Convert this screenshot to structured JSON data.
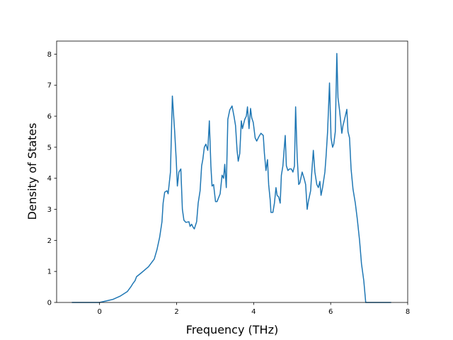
{
  "chart_data": {
    "type": "line",
    "xlabel": "Frequency (THz)",
    "ylabel": "Density of States",
    "x": [
      -0.72,
      0,
      0.35,
      0.53,
      0.72,
      0.81,
      0.86,
      0.92,
      0.96,
      1.08,
      1.27,
      1.42,
      1.49,
      1.56,
      1.62,
      1.65,
      1.69,
      1.75,
      1.78,
      1.84,
      1.89,
      1.95,
      1.99,
      2.02,
      2.06,
      2.11,
      2.15,
      2.19,
      2.24,
      2.32,
      2.35,
      2.39,
      2.43,
      2.46,
      2.52,
      2.56,
      2.61,
      2.65,
      2.68,
      2.72,
      2.76,
      2.81,
      2.85,
      2.89,
      2.92,
      2.96,
      3.01,
      3.05,
      3.13,
      3.18,
      3.22,
      3.25,
      3.29,
      3.33,
      3.38,
      3.44,
      3.49,
      3.53,
      3.57,
      3.6,
      3.64,
      3.68,
      3.71,
      3.77,
      3.81,
      3.84,
      3.88,
      3.92,
      3.95,
      3.99,
      4.04,
      4.08,
      4.14,
      4.19,
      4.25,
      4.28,
      4.32,
      4.36,
      4.39,
      4.43,
      4.45,
      4.5,
      4.54,
      4.58,
      4.61,
      4.65,
      4.69,
      4.72,
      4.76,
      4.82,
      4.85,
      4.89,
      4.93,
      4.98,
      5.02,
      5.06,
      5.09,
      5.13,
      5.17,
      5.2,
      5.26,
      5.31,
      5.35,
      5.39,
      5.42,
      5.48,
      5.51,
      5.55,
      5.59,
      5.64,
      5.68,
      5.72,
      5.75,
      5.79,
      5.85,
      5.88,
      5.92,
      5.97,
      6.01,
      6.05,
      6.08,
      6.12,
      6.16,
      6.19,
      6.23,
      6.29,
      6.32,
      6.36,
      6.42,
      6.45,
      6.49,
      6.53,
      6.58,
      6.64,
      6.69,
      6.75,
      6.8,
      6.86,
      6.91,
      7.57
    ],
    "series": [
      {
        "name": "DOS",
        "color": "#1f77b4",
        "values": [
          0,
          0,
          0.1,
          0.2,
          0.35,
          0.5,
          0.6,
          0.7,
          0.83,
          0.95,
          1.15,
          1.4,
          1.7,
          2.1,
          2.6,
          3.2,
          3.55,
          3.6,
          3.5,
          4.2,
          6.65,
          5.5,
          4.6,
          3.75,
          4.2,
          4.3,
          3.0,
          2.65,
          2.58,
          2.6,
          2.45,
          2.52,
          2.42,
          2.37,
          2.6,
          3.2,
          3.6,
          4.4,
          4.6,
          5.0,
          5.1,
          4.9,
          5.85,
          4.4,
          3.75,
          3.8,
          3.25,
          3.25,
          3.5,
          4.1,
          4.0,
          4.45,
          3.7,
          5.9,
          6.2,
          6.33,
          6.0,
          5.7,
          4.9,
          4.55,
          4.8,
          5.85,
          5.6,
          5.9,
          6.0,
          6.3,
          5.6,
          6.25,
          5.95,
          5.8,
          5.3,
          5.2,
          5.35,
          5.45,
          5.38,
          4.8,
          4.25,
          4.6,
          3.8,
          3.3,
          2.9,
          2.9,
          3.2,
          3.7,
          3.45,
          3.4,
          3.2,
          4.1,
          4.4,
          5.38,
          4.4,
          4.25,
          4.3,
          4.3,
          4.2,
          4.4,
          6.3,
          4.7,
          3.8,
          3.85,
          4.2,
          4.0,
          3.8,
          3.0,
          3.25,
          3.6,
          4.2,
          4.9,
          4.2,
          3.8,
          3.7,
          3.9,
          3.45,
          3.7,
          4.2,
          4.7,
          5.5,
          7.07,
          5.3,
          5.0,
          5.1,
          5.5,
          8.02,
          6.6,
          6.2,
          5.45,
          5.7,
          5.9,
          6.22,
          5.5,
          5.3,
          4.3,
          3.65,
          3.2,
          2.7,
          2.0,
          1.25,
          0.7,
          0,
          0
        ]
      }
    ],
    "xlim": [
      -1.115,
      8.0
    ],
    "xticks": [
      0,
      2,
      4,
      6,
      8
    ],
    "ylim": [
      0,
      8.42
    ],
    "yticks": [
      0,
      1,
      2,
      3,
      4,
      5,
      6,
      7,
      8
    ]
  }
}
